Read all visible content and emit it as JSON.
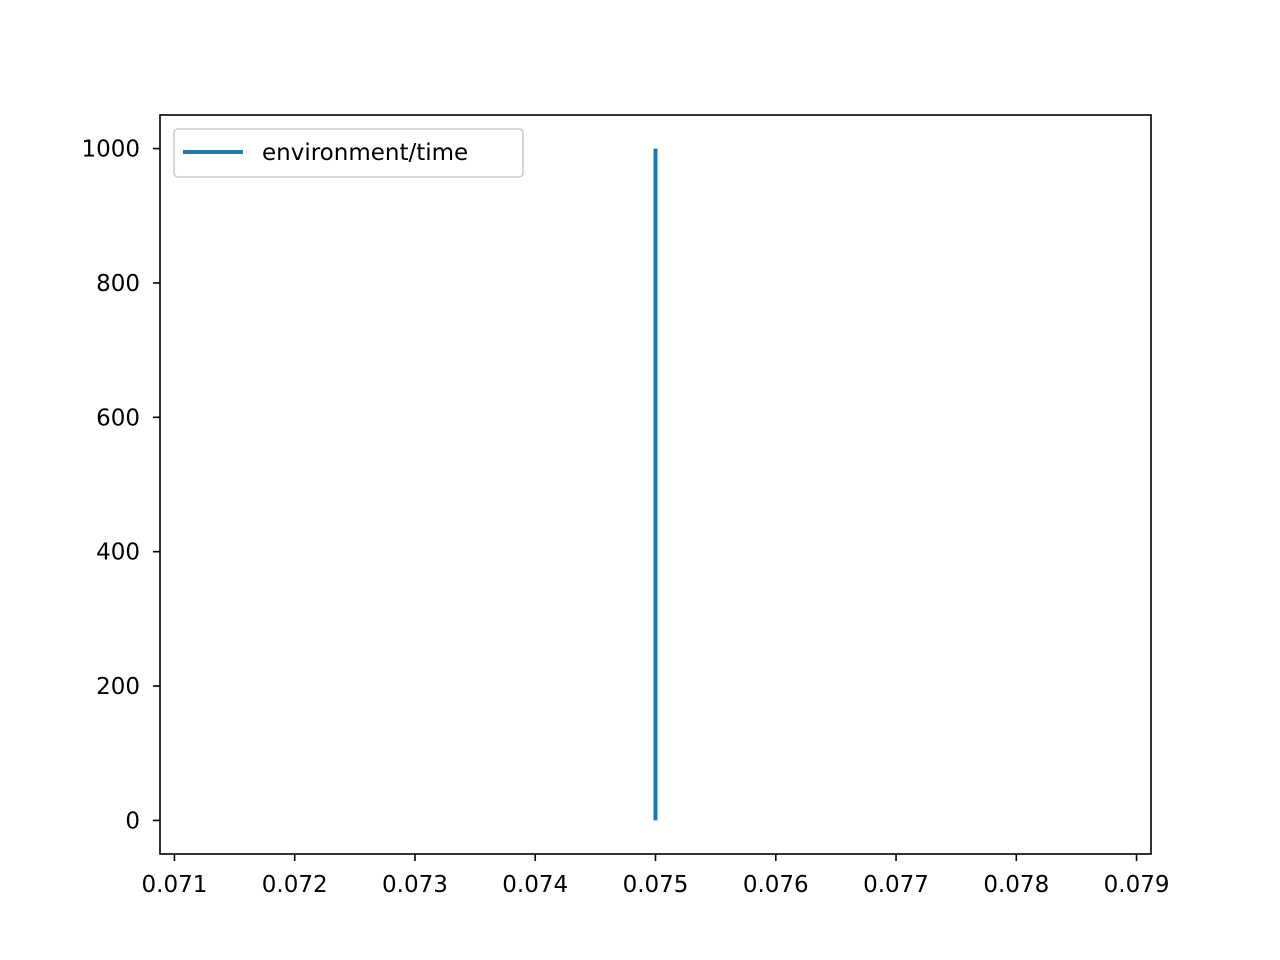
{
  "chart_data": {
    "type": "line",
    "title": "",
    "xlabel": "",
    "ylabel": "",
    "xlim": [
      0.07088,
      0.07912
    ],
    "ylim": [
      -50,
      1050
    ],
    "xticks": [
      0.071,
      0.072,
      0.073,
      0.074,
      0.075,
      0.076,
      0.077,
      0.078,
      0.079
    ],
    "xtick_labels": [
      "0.071",
      "0.072",
      "0.073",
      "0.074",
      "0.075",
      "0.076",
      "0.077",
      "0.078",
      "0.079"
    ],
    "yticks": [
      0,
      200,
      400,
      600,
      800,
      1000
    ],
    "ytick_labels": [
      "0",
      "200",
      "400",
      "600",
      "800",
      "1000"
    ],
    "grid": false,
    "legend_position": "upper-left",
    "series": [
      {
        "name": "environment/time",
        "color": "#1f77b4",
        "x": [
          0.075,
          0.075
        ],
        "y": [
          0,
          1000
        ]
      }
    ]
  }
}
